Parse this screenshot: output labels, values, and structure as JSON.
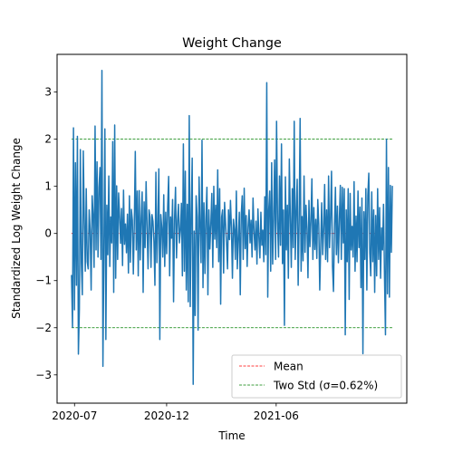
{
  "chart_data": {
    "type": "line",
    "title": "Weight Change",
    "xlabel": "Time",
    "ylabel": "Standardized Log Weight Change",
    "x_ticks": [
      "2020-07",
      "2020-12",
      "2021-06"
    ],
    "y_ticks": [
      -3,
      -2,
      -1,
      0,
      1,
      2,
      3
    ],
    "ylim": [
      -3.6,
      3.8
    ],
    "x_start": "2020-06-26",
    "x_end": "2021-12-11",
    "xlim": [
      "2020-06-02",
      "2022-01-04"
    ],
    "grid": false,
    "legend_position": "lower-right",
    "reference_lines": [
      {
        "name": "Mean",
        "y_values": [
          0
        ],
        "color": "#ff0000",
        "style": "dashed"
      },
      {
        "name": "Two Std (σ=0.62%)",
        "y_values": [
          -2,
          2
        ],
        "color": "#008000",
        "style": "dashed"
      }
    ],
    "series": [
      {
        "color": "#1f77b4",
        "values": [
          -0.88,
          -1.99,
          2.24,
          -1.62,
          1.5,
          -1.1,
          2.06,
          -2.56,
          -1.6,
          1.78,
          -0.62,
          -1.3,
          1.75,
          0.31,
          -0.8,
          0.95,
          -0.6,
          -0.75,
          0.5,
          0.05,
          -1.2,
          0.8,
          0.4,
          -0.72,
          2.28,
          -0.35,
          1.52,
          -0.5,
          0.98,
          1.4,
          -0.55,
          3.46,
          -2.82,
          -0.35,
          2.22,
          -2.25,
          0.6,
          -0.45,
          1.22,
          -0.7,
          0.35,
          -0.2,
          1.95,
          -1.25,
          2.3,
          -0.95,
          1.01,
          -0.55,
          0.86,
          0.36,
          -0.21,
          0.53,
          -0.68,
          0.92,
          -0.23,
          0.2,
          -0.41,
          0.41,
          -0.84,
          0.8,
          -0.61,
          0.51,
          0.28,
          -0.86,
          0.22,
          1.74,
          -0.35,
          0.9,
          -0.9,
          0.91,
          -0.56,
          0.32,
          0.88,
          -1.25,
          0.67,
          -0.3,
          1.1,
          0.14,
          -0.75,
          0.5,
          0.35,
          -0.72,
          0.4,
          0.26,
          -0.18,
          -1.1,
          1.3,
          -0.62,
          0.2,
          1.37,
          -2.25,
          0.4,
          0.12,
          -0.5,
          0.82,
          -0.7,
          0.45,
          -0.43,
          0.57,
          1.21,
          -0.9,
          0.35,
          -0.1,
          0.72,
          -1.45,
          0.3,
          0.98,
          -0.52,
          0.25,
          0.62,
          -0.2,
          0.08,
          0.64,
          -0.9,
          1.9,
          -0.8,
          1.32,
          -1.2,
          0.62,
          -1.45,
          2.5,
          -1.55,
          0.4,
          1.6,
          -3.2,
          0.05,
          -1.74,
          0.8,
          0.35,
          -2.05,
          1.2,
          0.18,
          -0.62,
          1.98,
          -1.15,
          0.65,
          -0.85,
          0.33,
          0.98,
          -1.3,
          0.5,
          -0.33,
          0.2,
          0.85,
          -0.72,
          1.0,
          -0.12,
          0.6,
          -0.3,
          1.35,
          -0.6,
          0.95,
          -1.5,
          0.35,
          0.5,
          -0.84,
          0.66,
          0.22,
          -0.2,
          -0.75,
          0.5,
          -0.13,
          0.7,
          0.12,
          -0.95,
          0.3,
          0.08,
          -0.55,
          0.9,
          -0.75,
          -0.1,
          0.45,
          -1.3,
          0.4,
          0.8,
          -0.55,
          0.96,
          -0.32,
          0.38,
          -0.7,
          0.14,
          0.5,
          -0.2,
          0.28,
          -0.5,
          0.75,
          0.05,
          -0.35,
          0.26,
          -0.65,
          0.52,
          -0.08,
          -0.52,
          0.45,
          -0.25,
          0.07,
          -0.6,
          0.78,
          -0.45,
          3.2,
          -1.35,
          0.5,
          0.9,
          -0.8,
          1.5,
          -0.65,
          0.3,
          1.56,
          -0.55,
          2.38,
          0.24,
          -0.5,
          1.22,
          -0.25,
          1.9,
          -0.64,
          0.5,
          -1.95,
          1.2,
          -0.35,
          0.6,
          -0.95,
          1.58,
          0.35,
          -0.72,
          0.95,
          -0.3,
          2.38,
          -0.55,
          0.45,
          1.15,
          -1.1,
          0.28,
          2.44,
          -0.8,
          0.36,
          -0.58,
          1.22,
          -0.4,
          0.6,
          0.1,
          -0.94,
          0.7,
          -0.28,
          0.26,
          1.16,
          -0.55,
          0.55,
          -0.34,
          0.3,
          -0.53,
          0.72,
          0.2,
          -1.2,
          -0.25,
          0.65,
          -0.45,
          0.08,
          1.04,
          -0.55,
          0.5,
          -0.6,
          1.22,
          -0.3,
          0.35,
          1.32,
          -0.7,
          -1.23,
          0.14,
          0.98,
          -0.45,
          0.58,
          -0.62,
          0.31,
          1.02,
          -0.55,
          0.98,
          -0.2,
          0.95,
          -2.15,
          0.5,
          -0.6,
          0.95,
          -1.4,
          0.85,
          -0.35,
          0.15,
          -0.5,
          1.1,
          -0.8,
          0.37,
          -0.6,
          0.9,
          -0.3,
          0.56,
          -1.15,
          0.75,
          -2.55,
          0.46,
          -0.55,
          0.95,
          -1.2,
          0.8,
          1.28,
          -0.42,
          -0.9,
          0.88,
          -0.6,
          0.5,
          -1.25,
          0.38,
          -0.9,
          0.95,
          -0.55,
          0.55,
          -0.95,
          0.12,
          -0.35,
          0.62,
          -0.9,
          -2.15,
          2.0,
          -1.28,
          1.4,
          -1.35,
          1.02,
          -0.4,
          1.01
        ]
      }
    ]
  }
}
